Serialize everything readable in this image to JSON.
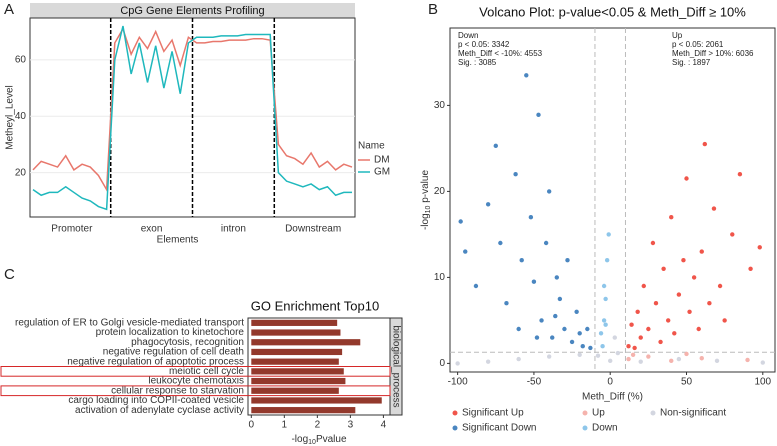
{
  "chart_data": [
    {
      "type": "line",
      "panel_label": "A",
      "title": "CpG Gene Elements Profiling",
      "x_label": "Elements",
      "y_label": "Metheyl_Level",
      "x": [
        1,
        2,
        3,
        4,
        5,
        6,
        7,
        8,
        9,
        10,
        11,
        12,
        13,
        14,
        15,
        16,
        17,
        18,
        19,
        20,
        21,
        22,
        23,
        24,
        25,
        26,
        27,
        28,
        29,
        30,
        31,
        32,
        33,
        34,
        35,
        36,
        37,
        38,
        39,
        40
      ],
      "xlim": [
        1,
        40
      ],
      "ylim": [
        5,
        72
      ],
      "yticks": [
        20,
        40,
        60
      ],
      "regions": [
        "Promoter",
        "exon",
        "intron",
        "Downstream"
      ],
      "region_boundaries": [
        10.5,
        20.5,
        30.5
      ],
      "legend_title": "Name",
      "series": [
        {
          "name": "DM",
          "color": "#e8776c",
          "values": [
            21,
            24,
            23,
            22,
            26,
            21,
            23,
            22,
            19,
            14,
            66,
            71,
            62,
            68,
            64,
            70,
            63,
            67,
            58,
            68,
            66,
            66,
            66.5,
            66.5,
            67,
            67,
            67,
            67.5,
            67.5,
            67,
            30,
            26,
            25,
            23,
            27,
            22,
            24,
            21,
            23,
            22
          ]
        },
        {
          "name": "GM",
          "color": "#1fb8bd",
          "values": [
            14,
            12,
            13,
            13,
            15,
            13,
            11,
            10,
            8,
            7,
            60,
            72,
            55,
            66,
            52,
            65,
            50,
            63,
            48,
            66,
            68,
            68,
            68,
            68.5,
            68.5,
            68.5,
            69,
            69,
            69,
            69,
            20,
            17,
            16,
            15,
            16,
            14,
            15,
            12,
            13,
            13
          ]
        }
      ]
    },
    {
      "type": "scatter",
      "panel_label": "B",
      "title": "Volcano Plot: p-value<0.05 & Meth_Diff ≥ 10%",
      "x_label": "Meth_Diff (%)",
      "y_label": {
        "prefix": "-log",
        "sub": "10",
        "suffix": " p-value"
      },
      "xlim": [
        -105,
        108
      ],
      "ylim": [
        -1,
        39
      ],
      "xticks": [
        -100,
        -50,
        0,
        50,
        100
      ],
      "yticks": [
        0,
        10,
        20,
        30
      ],
      "thresholds": {
        "x": [
          -10,
          10
        ],
        "y": 1.3
      },
      "annotations": [
        [
          "Down",
          "p < 0.05: 3342",
          "Meth_Diff < -10%: 4553",
          "Sig. : 3085"
        ],
        [
          "Up",
          "p < 0.05: 2061",
          "Meth_Diff > 10%: 6036",
          "Sig. : 1897"
        ]
      ],
      "series": [
        {
          "name": "Significant Up",
          "color": "#f0554a",
          "x": [
            12,
            14,
            16,
            18,
            20,
            22,
            25,
            28,
            30,
            33,
            35,
            38,
            40,
            42,
            45,
            48,
            50,
            52,
            55,
            58,
            60,
            62,
            65,
            68,
            72,
            75,
            80,
            85,
            92,
            98
          ],
          "values": [
            2,
            4.5,
            1.8,
            6,
            3,
            9,
            4,
            14,
            7,
            2.5,
            11,
            5,
            17,
            3.5,
            8,
            12,
            21.5,
            6,
            10,
            4,
            13,
            25.5,
            7,
            18,
            9,
            5,
            15,
            22,
            11,
            13.5
          ]
        },
        {
          "name": "Significant Down",
          "color": "#4a86c0",
          "x": [
            -98,
            -95,
            -88,
            -80,
            -75,
            -72,
            -68,
            -62,
            -58,
            -55,
            -52,
            -50,
            -47,
            -45,
            -42,
            -40,
            -38,
            -35,
            -33,
            -30,
            -28,
            -25,
            -22,
            -20,
            -18,
            -15,
            -13,
            -60,
            -48,
            -36
          ],
          "values": [
            16.5,
            13,
            9,
            18.5,
            25.3,
            14,
            7,
            22,
            12,
            33.5,
            17,
            9.5,
            28.9,
            5,
            14,
            20,
            3,
            10,
            7.5,
            4,
            12,
            2.5,
            6,
            3.5,
            2,
            4,
            1.8,
            4,
            3,
            5.5
          ]
        },
        {
          "name": "Up",
          "color": "#f5b3ad",
          "x": [
            12,
            25,
            40,
            60,
            90,
            15,
            50
          ],
          "values": [
            0.5,
            0.8,
            0.3,
            0.6,
            0.4,
            1,
            1.1
          ]
        },
        {
          "name": "Down",
          "color": "#8ec6ea",
          "x": [
            -5,
            -4,
            -3,
            -2,
            -4,
            -6,
            -1,
            -3
          ],
          "values": [
            2,
            5,
            7.5,
            12,
            9,
            3.5,
            15,
            4.5
          ]
        },
        {
          "name": "Non-significant",
          "color": "#d3d6e0",
          "x": [
            -100,
            -80,
            -60,
            -40,
            -20,
            0,
            5,
            3,
            -8,
            20,
            45,
            70,
            100
          ],
          "values": [
            0,
            0.2,
            0.5,
            0.8,
            1,
            0.3,
            1.2,
            3,
            0.9,
            0.2,
            0.5,
            0.3,
            0.1
          ]
        }
      ]
    },
    {
      "type": "hbar",
      "panel_label": "C",
      "title": "GO Enrichment Top10",
      "x_label": {
        "prefix": "-log",
        "sub": "10",
        "suffix": "Pvalue"
      },
      "facet": "biological_process",
      "color": "#93392c",
      "xlim": [
        -0.1,
        4.2
      ],
      "xticks": [
        0,
        1,
        2,
        3,
        4
      ],
      "categories": [
        "regulation of ER to Golgi vesicle-mediated transport",
        "protein localization to kinetochore",
        "phagocytosis, recognition",
        "negative regulation of cell death",
        "negative regulation of apoptotic process",
        "meiotic cell cycle",
        "leukocyte chemotaxis",
        "cellular response to starvation",
        "cargo loading into COPII-coated vesicle",
        "activation of adenylate cyclase activity"
      ],
      "values": [
        2.6,
        2.7,
        3.3,
        2.75,
        2.65,
        2.8,
        2.85,
        2.65,
        3.95,
        3.15
      ],
      "highlighted": [
        5,
        7
      ]
    }
  ]
}
